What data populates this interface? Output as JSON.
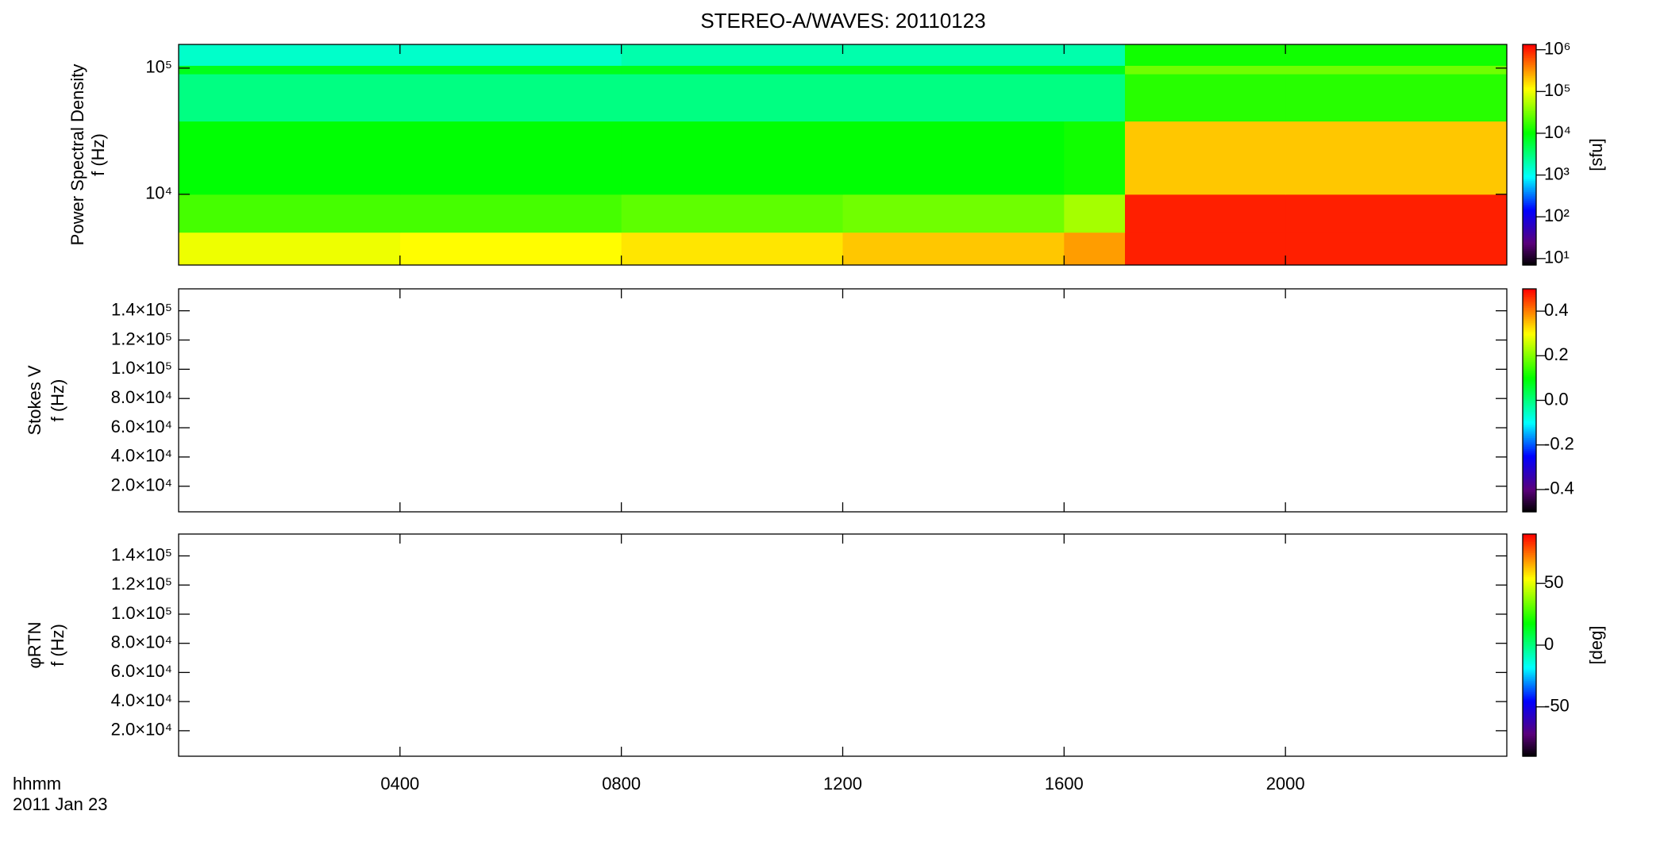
{
  "title": "STEREO-A/WAVES: 20110123",
  "time_label": "hhmm",
  "date_label": "2011 Jan 23",
  "chart_data": [
    {
      "type": "heatmap",
      "ylabel": [
        "Power Spectral Density",
        "f (Hz)"
      ],
      "ylog": true,
      "ylim": [
        2750,
        154000
      ],
      "yticks": [
        {
          "value": 10000,
          "label": "10⁴"
        },
        {
          "value": 100000,
          "label": "10⁵"
        }
      ],
      "x_bins": [
        0,
        4,
        8,
        12,
        16,
        17.1,
        20,
        24
      ],
      "y_bins": [
        2750,
        5000,
        10000,
        38000,
        90000,
        105000,
        154000
      ],
      "z": [
        [
          100000,
          120000,
          150000,
          200000,
          300000,
          1000000,
          1000000
        ],
        [
          20000,
          20000,
          25000,
          30000,
          50000,
          1000000,
          1000000
        ],
        [
          10000,
          10000,
          10000,
          10000,
          12000,
          200000,
          200000
        ],
        [
          3000,
          3000,
          3000,
          3000,
          3000,
          15000,
          15000
        ],
        [
          8000,
          8000,
          8000,
          8000,
          8000,
          30000,
          30000
        ],
        [
          1500,
          1500,
          2000,
          2000,
          2000,
          12000,
          12000
        ]
      ],
      "colormap": "rainbow",
      "clog": true,
      "clim": [
        7,
        1340000
      ],
      "cticks": [
        {
          "value": 10,
          "label": "10¹"
        },
        {
          "value": 100,
          "label": "10²"
        },
        {
          "value": 1000,
          "label": "10³"
        },
        {
          "value": 10000,
          "label": "10⁴"
        },
        {
          "value": 100000,
          "label": "10⁵"
        },
        {
          "value": 1000000,
          "label": "10⁶"
        }
      ],
      "clabel": "[sfu]"
    },
    {
      "type": "heatmap",
      "ylabel": [
        "Stokes V",
        "f (Hz)"
      ],
      "ylim": [
        2500,
        155000
      ],
      "yticks": [
        {
          "value": 20000,
          "label": "2.0×10⁴"
        },
        {
          "value": 40000,
          "label": "4.0×10⁴"
        },
        {
          "value": 60000,
          "label": "6.0×10⁴"
        },
        {
          "value": 80000,
          "label": "8.0×10⁴"
        },
        {
          "value": 100000,
          "label": "1.0×10⁵"
        },
        {
          "value": 120000,
          "label": "1.2×10⁵"
        },
        {
          "value": 140000,
          "label": "1.4×10⁵"
        }
      ],
      "colormap": "rainbow",
      "clim": [
        -0.5,
        0.5
      ],
      "cticks": [
        -0.4,
        -0.2,
        {
          "value": 0,
          "label": "0.0"
        },
        0.2,
        0.4
      ]
    },
    {
      "type": "heatmap",
      "ylabel": [
        "φRTN",
        "f (Hz)"
      ],
      "ylim": [
        2500,
        155000
      ],
      "yticks": [
        {
          "value": 20000,
          "label": "2.0×10⁴"
        },
        {
          "value": 40000,
          "label": "4.0×10⁴"
        },
        {
          "value": 60000,
          "label": "6.0×10⁴"
        },
        {
          "value": 80000,
          "label": "8.0×10⁴"
        },
        {
          "value": 100000,
          "label": "1.0×10⁵"
        },
        {
          "value": 120000,
          "label": "1.2×10⁵"
        },
        {
          "value": 140000,
          "label": "1.4×10⁵"
        }
      ],
      "colormap": "rainbow",
      "clim": [
        -90,
        90
      ],
      "cticks": [
        -50,
        0,
        50
      ],
      "clabel": "[deg]",
      "xlim": [
        0,
        24
      ],
      "xticks": [
        {
          "value": 4,
          "label": "0400"
        },
        {
          "value": 8,
          "label": "0800"
        },
        {
          "value": 12,
          "label": "1200"
        },
        {
          "value": 16,
          "label": "1600"
        },
        {
          "value": 20,
          "label": "2000"
        }
      ]
    }
  ]
}
